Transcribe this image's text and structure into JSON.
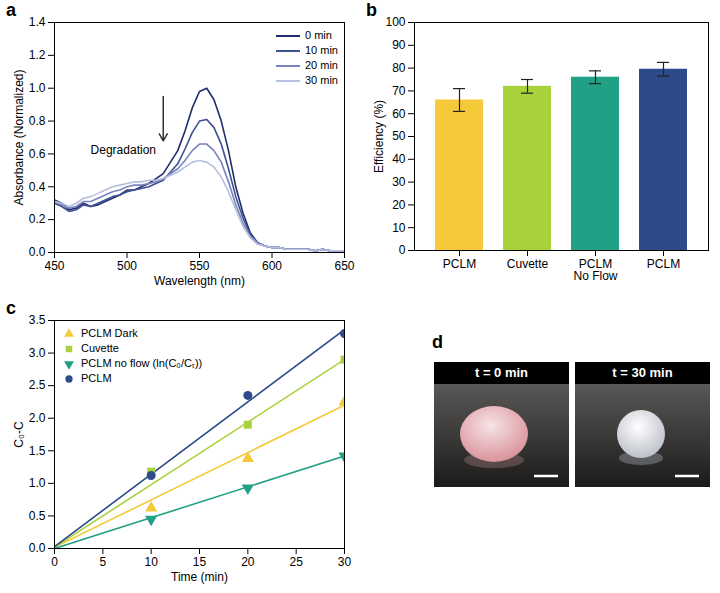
{
  "chart_data": [
    {
      "type": "line",
      "panel_label": "a",
      "x_label": "Wavelength (nm)",
      "y_label": "Absorbance (Normalized)",
      "x": [
        450,
        455,
        460,
        465,
        470,
        475,
        480,
        485,
        490,
        495,
        500,
        505,
        510,
        515,
        520,
        525,
        530,
        535,
        540,
        545,
        550,
        555,
        560,
        565,
        570,
        575,
        580,
        585,
        590,
        595,
        600,
        605,
        610,
        615,
        620,
        625,
        630,
        635,
        640,
        645,
        650
      ],
      "series": [
        {
          "name": "0 min",
          "color": "#1f2d6b",
          "values": [
            0.32,
            0.3,
            0.26,
            0.27,
            0.3,
            0.28,
            0.29,
            0.31,
            0.33,
            0.35,
            0.38,
            0.38,
            0.4,
            0.42,
            0.45,
            0.48,
            0.55,
            0.62,
            0.74,
            0.88,
            0.98,
            1.0,
            0.93,
            0.8,
            0.62,
            0.4,
            0.24,
            0.12,
            0.06,
            0.04,
            0.03,
            0.03,
            0.02,
            0.02,
            0.02,
            0.02,
            0.01,
            0.02,
            0.01,
            0.01,
            0.01
          ]
        },
        {
          "name": "10 min",
          "color": "#3d4f95",
          "values": [
            0.3,
            0.28,
            0.25,
            0.26,
            0.29,
            0.28,
            0.3,
            0.32,
            0.34,
            0.35,
            0.37,
            0.38,
            0.39,
            0.4,
            0.42,
            0.44,
            0.49,
            0.54,
            0.63,
            0.73,
            0.8,
            0.81,
            0.76,
            0.66,
            0.51,
            0.34,
            0.21,
            0.11,
            0.06,
            0.04,
            0.03,
            0.03,
            0.02,
            0.02,
            0.02,
            0.02,
            0.01,
            0.02,
            0.01,
            0.01,
            0.01
          ]
        },
        {
          "name": "20 min",
          "color": "#7784bd",
          "values": [
            0.31,
            0.29,
            0.27,
            0.28,
            0.31,
            0.31,
            0.33,
            0.35,
            0.37,
            0.38,
            0.4,
            0.41,
            0.41,
            0.42,
            0.43,
            0.45,
            0.48,
            0.51,
            0.56,
            0.62,
            0.66,
            0.66,
            0.62,
            0.55,
            0.43,
            0.29,
            0.18,
            0.1,
            0.06,
            0.04,
            0.03,
            0.03,
            0.02,
            0.02,
            0.02,
            0.02,
            0.01,
            0.02,
            0.01,
            0.01,
            0.01
          ]
        },
        {
          "name": "30 min",
          "color": "#b7bfdf",
          "values": [
            0.31,
            0.3,
            0.28,
            0.3,
            0.33,
            0.34,
            0.36,
            0.38,
            0.4,
            0.41,
            0.42,
            0.43,
            0.43,
            0.44,
            0.44,
            0.45,
            0.47,
            0.49,
            0.52,
            0.55,
            0.56,
            0.55,
            0.52,
            0.46,
            0.37,
            0.26,
            0.16,
            0.09,
            0.05,
            0.04,
            0.03,
            0.03,
            0.02,
            0.02,
            0.02,
            0.02,
            0.01,
            0.02,
            0.01,
            0.01,
            0.01
          ]
        }
      ],
      "xlim": [
        450,
        650
      ],
      "xticks": [
        450,
        500,
        550,
        600,
        650
      ],
      "ylim": [
        0,
        1.4
      ],
      "yticks": [
        {
          "value": 0,
          "label": "0.0"
        },
        0.2,
        0.4,
        0.6,
        0.8,
        {
          "value": 1,
          "label": "1.0"
        },
        1.2,
        1.4
      ],
      "legend": "top-right",
      "annotations": [
        {
          "text": "Degradation",
          "x": 520,
          "y": 0.62,
          "arrow_x": 525,
          "arrow_y1": 0.95,
          "arrow_y2": 0.68
        }
      ]
    },
    {
      "type": "bar",
      "panel_label": "b",
      "y_label": "Efficiency (%)",
      "categories": [
        "PCLM",
        "Cuvette",
        "PCLM No Flow",
        "PCLM"
      ],
      "values": [
        66,
        72,
        76,
        79.5
      ],
      "errors": [
        5,
        3,
        2.8,
        3
      ],
      "colors": [
        "#f4c93a",
        "#a8d23c",
        "#21a086",
        "#2e4a8a"
      ],
      "ylim": [
        0,
        100
      ],
      "yticks": [
        0,
        10,
        20,
        30,
        40,
        50,
        60,
        70,
        80,
        90,
        100
      ]
    },
    {
      "type": "scatter",
      "panel_label": "c",
      "x_label": "Time (min)",
      "y_label": "C₀-C",
      "xlim": [
        0,
        30
      ],
      "xticks": [
        0,
        5,
        10,
        15,
        20,
        25,
        30
      ],
      "ylim": [
        0,
        3.5
      ],
      "yticks": [
        {
          "value": 0,
          "label": "0.0"
        },
        0.5,
        {
          "value": 1,
          "label": "1.0"
        },
        1.5,
        {
          "value": 2,
          "label": "2.0"
        },
        2.5,
        {
          "value": 3,
          "label": "3.0"
        },
        3.5
      ],
      "legend": "top-left",
      "series": [
        {
          "name": "PCLM Dark",
          "color": "#f4c93a",
          "marker": "triangle",
          "x": [
            10,
            20,
            30
          ],
          "values": [
            0.62,
            1.38,
            2.25
          ],
          "fit_x": [
            0,
            30
          ],
          "fit_values": [
            0.02,
            2.2
          ]
        },
        {
          "name": "Cuvette",
          "color": "#a8d23c",
          "marker": "square",
          "x": [
            10,
            20,
            30
          ],
          "values": [
            1.18,
            1.9,
            2.9
          ],
          "fit_x": [
            0,
            30
          ],
          "fit_values": [
            0.02,
            2.9
          ]
        },
        {
          "name": "PCLM no flow (ln(C₀/Cₜ))",
          "color": "#21a086",
          "marker": "triangle-down",
          "x": [
            10,
            20,
            30
          ],
          "values": [
            0.45,
            0.93,
            1.42
          ],
          "fit_x": [
            0,
            30
          ],
          "fit_values": [
            0,
            1.42
          ]
        },
        {
          "name": "PCLM",
          "color": "#2e4a8a",
          "marker": "circle",
          "x": [
            10,
            20,
            30
          ],
          "values": [
            1.12,
            2.35,
            3.3
          ],
          "fit_x": [
            0,
            30
          ],
          "fit_values": [
            0.03,
            3.36
          ]
        }
      ]
    }
  ],
  "image_panel": {
    "panel_label": "d",
    "images": [
      {
        "label": "t = 0 min"
      },
      {
        "label": "t = 30 min"
      }
    ]
  }
}
